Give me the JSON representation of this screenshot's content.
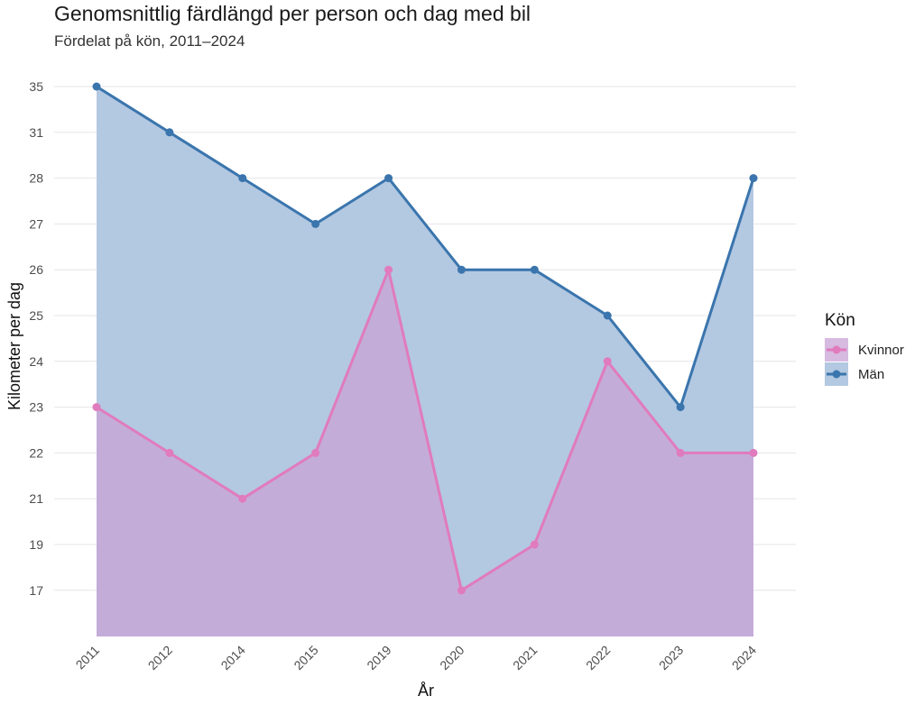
{
  "chart_data": {
    "type": "area",
    "title": "Genomsnittlig färdlängd per person och dag med bil",
    "subtitle": "Fördelat på kön, 2011–2024",
    "xlabel": "År",
    "ylabel": "Kilometer per dag",
    "categories": [
      "2011",
      "2012",
      "2014",
      "2015",
      "2019",
      "2020",
      "2021",
      "2022",
      "2023",
      "2024"
    ],
    "y_ticks": [
      "17",
      "19",
      "21",
      "22",
      "23",
      "24",
      "25",
      "26",
      "27",
      "28",
      "31",
      "35"
    ],
    "grid": true,
    "legend_position": "right",
    "legend_title": "Kön",
    "series": [
      {
        "name": "Kvinnor",
        "color": "#e07bbd",
        "fill": "#c9a3d6",
        "values": [
          23,
          22,
          21,
          22,
          26,
          17,
          19,
          24,
          22,
          22
        ]
      },
      {
        "name": "Män",
        "color": "#3a75ad",
        "fill": "#b3c8e1",
        "values": [
          35,
          31,
          28,
          27,
          28,
          26,
          26,
          25,
          23,
          28
        ]
      }
    ]
  }
}
